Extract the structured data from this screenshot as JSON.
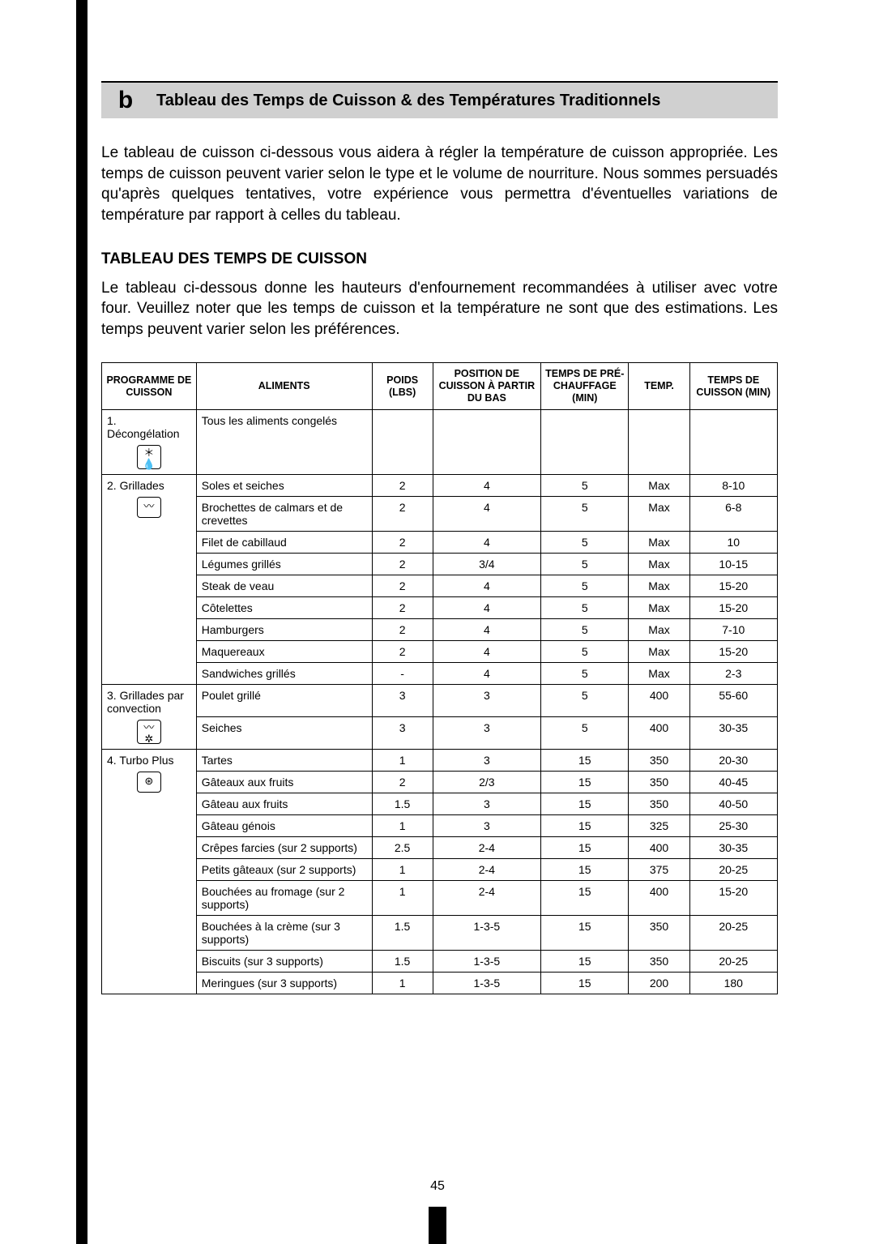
{
  "header": {
    "letter": "b",
    "title": "Tableau des Temps de Cuisson & des Températures Traditionnels"
  },
  "intro": "Le tableau de cuisson ci-dessous vous aidera à régler la température de cuisson appropriée. Les temps de cuisson peuvent varier selon le type et le volume de nourriture. Nous sommes persuadés qu'après quelques tentatives, votre expérience vous permettra d'éventuelles variations de température par rapport à celles du tableau.",
  "section": {
    "heading": "TABLEAU DES TEMPS DE CUISSON",
    "body": "Le tableau ci-dessous donne les hauteurs d'enfournement recommandées à utiliser avec votre four. Veuillez noter que les temps de cuisson et la température ne sont que des estimations. Les temps peuvent varier selon les préférences."
  },
  "table": {
    "columns": {
      "program": "PROGRAMME DE CUISSON",
      "food": "ALIMENTS",
      "weight": "POIDS (LBS)",
      "position": "POSITION DE CUISSON À PARTIR DU BAS",
      "preheat": "TEMPS DE PRÉ-CHAUFFAGE (MIN)",
      "temp": "TEMP.",
      "cooktime": "TEMPS DE CUISSON (MIN)"
    },
    "groups": [
      {
        "program": "1. Décongélation",
        "icon": "defrost",
        "rows": [
          {
            "food": "Tous les aliments congelés",
            "weight": "",
            "position": "",
            "preheat": "",
            "temp": "",
            "cooktime": ""
          }
        ]
      },
      {
        "program": "2. Grillades",
        "icon": "grill",
        "rows": [
          {
            "food": "Soles et seiches",
            "weight": "2",
            "position": "4",
            "preheat": "5",
            "temp": "Max",
            "cooktime": "8-10"
          },
          {
            "food": "Brochettes de calmars et de crevettes",
            "weight": "2",
            "position": "4",
            "preheat": "5",
            "temp": "Max",
            "cooktime": "6-8"
          },
          {
            "food": "Filet de cabillaud",
            "weight": "2",
            "position": "4",
            "preheat": "5",
            "temp": "Max",
            "cooktime": "10"
          },
          {
            "food": "Légumes grillés",
            "weight": "2",
            "position": "3/4",
            "preheat": "5",
            "temp": "Max",
            "cooktime": "10-15"
          },
          {
            "food": "Steak de veau",
            "weight": "2",
            "position": "4",
            "preheat": "5",
            "temp": "Max",
            "cooktime": "15-20"
          },
          {
            "food": "Côtelettes",
            "weight": "2",
            "position": "4",
            "preheat": "5",
            "temp": "Max",
            "cooktime": "15-20"
          },
          {
            "food": "Hamburgers",
            "weight": "2",
            "position": "4",
            "preheat": "5",
            "temp": "Max",
            "cooktime": "7-10"
          },
          {
            "food": "Maquereaux",
            "weight": "2",
            "position": "4",
            "preheat": "5",
            "temp": "Max",
            "cooktime": "15-20"
          },
          {
            "food": "Sandwiches grillés",
            "weight": "-",
            "position": "4",
            "preheat": "5",
            "temp": "Max",
            "cooktime": "2-3"
          }
        ]
      },
      {
        "program": "3. Grillades par convection",
        "icon": "fan-grill",
        "rows": [
          {
            "food": "Poulet grillé",
            "weight": "3",
            "position": "3",
            "preheat": "5",
            "temp": "400",
            "cooktime": "55-60"
          },
          {
            "food": "Seiches",
            "weight": "3",
            "position": "3",
            "preheat": "5",
            "temp": "400",
            "cooktime": "30-35"
          }
        ]
      },
      {
        "program": "4. Turbo Plus",
        "icon": "turbo",
        "rows": [
          {
            "food": "Tartes",
            "weight": "1",
            "position": "3",
            "preheat": "15",
            "temp": "350",
            "cooktime": "20-30"
          },
          {
            "food": "Gâteaux aux fruits",
            "weight": "2",
            "position": "2/3",
            "preheat": "15",
            "temp": "350",
            "cooktime": "40-45"
          },
          {
            "food": "Gâteau aux fruits",
            "weight": "1.5",
            "position": "3",
            "preheat": "15",
            "temp": "350",
            "cooktime": "40-50"
          },
          {
            "food": "Gâteau génois",
            "weight": "1",
            "position": "3",
            "preheat": "15",
            "temp": "325",
            "cooktime": "25-30"
          },
          {
            "food": "Crêpes farcies (sur 2 supports)",
            "weight": "2.5",
            "position": "2-4",
            "preheat": "15",
            "temp": "400",
            "cooktime": "30-35"
          },
          {
            "food": "Petits gâteaux (sur 2 supports)",
            "weight": "1",
            "position": "2-4",
            "preheat": "15",
            "temp": "375",
            "cooktime": "20-25"
          },
          {
            "food": "Bouchées au fromage (sur 2 supports)",
            "weight": "1",
            "position": "2-4",
            "preheat": "15",
            "temp": "400",
            "cooktime": "15-20"
          },
          {
            "food": "Bouchées à la crème (sur 3 supports)",
            "weight": "1.5",
            "position": "1-3-5",
            "preheat": "15",
            "temp": "350",
            "cooktime": "20-25"
          },
          {
            "food": "Biscuits (sur 3 supports)",
            "weight": "1.5",
            "position": "1-3-5",
            "preheat": "15",
            "temp": "350",
            "cooktime": "20-25"
          },
          {
            "food": "Meringues (sur 3 supports)",
            "weight": "1",
            "position": "1-3-5",
            "preheat": "15",
            "temp": "200",
            "cooktime": "180"
          }
        ]
      }
    ]
  },
  "page_number": "45"
}
